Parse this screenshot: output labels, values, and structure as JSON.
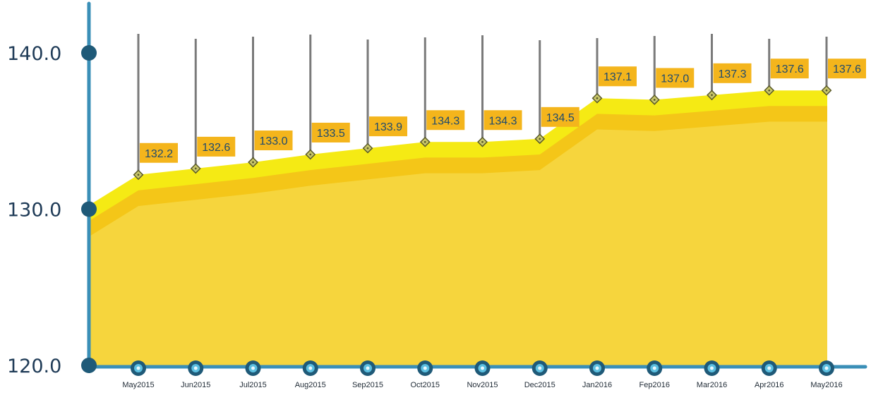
{
  "chart_data": {
    "type": "area",
    "categories": [
      "May2015",
      "Jun2015",
      "Jul2015",
      "Aug2015",
      "Sep2015",
      "Oct2015",
      "Nov2015",
      "Dec2015",
      "Jan2016",
      "Fep2016",
      "Mar2016",
      "Apr2016",
      "May2016"
    ],
    "series": [
      {
        "values": [
          132.2,
          132.6,
          133.0,
          133.5,
          133.9,
          134.3,
          134.3,
          134.5,
          137.1,
          137.0,
          137.3,
          137.6,
          137.6
        ]
      }
    ],
    "data_labels": [
      "132.2",
      "132.6",
      "133.0",
      "133.5",
      "133.9",
      "134.3",
      "134.3",
      "134.5",
      "137.1",
      "137.0",
      "137.3",
      "137.6",
      "137.6"
    ],
    "y_ticks": [
      {
        "value": 120,
        "label": "120.0"
      },
      {
        "value": 130,
        "label": "130.0"
      },
      {
        "value": 140,
        "label": "140.0"
      }
    ],
    "ylim": [
      120,
      140
    ],
    "grid": false,
    "colors": {
      "axis": "#3a8fb7",
      "axis_dot": "#1f5a78",
      "area_top": "#f5ea14",
      "area_mid": "#f4c618",
      "area_main": "#f6d53d",
      "label_bg": "#f4b51c",
      "label_text": "#1f4a6e",
      "marker_fill": "#c9c76a",
      "marker_stroke": "#5a5a2a",
      "drop_line": "#7a7a7a"
    }
  }
}
